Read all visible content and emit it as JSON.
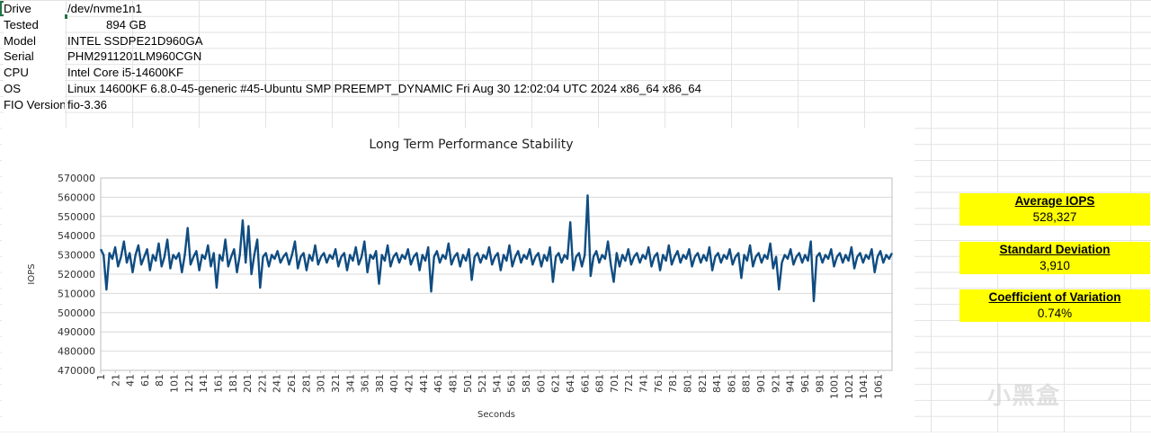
{
  "sheet": {
    "rows": [
      {
        "label": "Drive",
        "value": "/dev/nvme1n1",
        "numeric": false
      },
      {
        "label": "Tested",
        "value": "894 GB",
        "numeric": true
      },
      {
        "label": "Model",
        "value": "INTEL SSDPE21D960GA",
        "numeric": false
      },
      {
        "label": "Serial",
        "value": "PHM2911201LM960CGN",
        "numeric": false
      },
      {
        "label": "CPU",
        "value": "Intel Core i5-14600KF",
        "numeric": false
      },
      {
        "label": "OS",
        "value": "Linux 14600KF 6.8.0-45-generic #45-Ubuntu SMP PREEMPT_DYNAMIC Fri Aug 30 12:02:04 UTC 2024 x86_64 x86_64",
        "numeric": false
      },
      {
        "label": "FIO Version",
        "value": "fio-3.36",
        "numeric": false
      }
    ]
  },
  "stats": [
    {
      "title": "Average IOPS",
      "value": "528,327"
    },
    {
      "title": "Standard Deviation",
      "value": "3,910"
    },
    {
      "title": "Coefficient of Variation",
      "value": "0.74%"
    }
  ],
  "watermark": "小黑盒",
  "colors": {
    "line": "#0f4c81",
    "stat_bg": "#ffff00",
    "selection": "#217346"
  },
  "chart_data": {
    "type": "line",
    "title": "Long Term Performance Stability",
    "xlabel": "Seconds",
    "ylabel": "IOPS",
    "ylim": [
      470000,
      570000
    ],
    "yticks": [
      470000,
      480000,
      490000,
      500000,
      510000,
      520000,
      530000,
      540000,
      550000,
      560000,
      570000
    ],
    "ytick_labels": [
      "470000",
      "480000",
      "490000",
      "500000",
      "510000",
      "520000",
      "530000",
      "540000",
      "550000",
      "560000",
      "570000"
    ],
    "xtick_labels": [
      "1",
      "21",
      "41",
      "61",
      "81",
      "101",
      "121",
      "141",
      "161",
      "181",
      "201",
      "221",
      "241",
      "261",
      "281",
      "301",
      "321",
      "341",
      "361",
      "381",
      "401",
      "421",
      "441",
      "461",
      "481",
      "501",
      "521",
      "541",
      "561",
      "581",
      "601",
      "621",
      "641",
      "661",
      "681",
      "701",
      "721",
      "741",
      "761",
      "781",
      "801",
      "821",
      "841",
      "861",
      "881",
      "901",
      "921",
      "941",
      "961",
      "981",
      "1001",
      "1021",
      "1041",
      "1061"
    ],
    "x_range": [
      1,
      1080
    ],
    "grid": "horizontal",
    "series": [
      {
        "values": [
          533000,
          530000,
          512000,
          531000,
          528000,
          534000,
          524000,
          529000,
          537000,
          526000,
          531000,
          521000,
          530000,
          535000,
          525000,
          529000,
          533000,
          522000,
          530000,
          527000,
          536000,
          524000,
          529000,
          538000,
          523000,
          530000,
          528000,
          531000,
          521000,
          530000,
          544000,
          525000,
          529000,
          532000,
          522000,
          530000,
          528000,
          535000,
          524000,
          531000,
          513000,
          530000,
          527000,
          538000,
          524000,
          529000,
          533000,
          521000,
          530000,
          548000,
          526000,
          545000,
          520000,
          530000,
          538000,
          513000,
          529000,
          531000,
          524000,
          530000,
          528000,
          532000,
          526000,
          529000,
          531000,
          525000,
          530000,
          537000,
          523000,
          529000,
          531000,
          522000,
          530000,
          527000,
          535000,
          525000,
          529000,
          531000,
          526000,
          530000,
          528000,
          533000,
          524000,
          529000,
          531000,
          522000,
          530000,
          527000,
          534000,
          525000,
          529000,
          537000,
          521000,
          530000,
          528000,
          532000,
          515000,
          530000,
          527000,
          535000,
          524000,
          529000,
          531000,
          526000,
          530000,
          528000,
          533000,
          525000,
          529000,
          531000,
          522000,
          530000,
          527000,
          534000,
          511000,
          529000,
          532000,
          526000,
          530000,
          528000,
          536000,
          525000,
          529000,
          531000,
          524000,
          530000,
          527000,
          533000,
          517000,
          529000,
          531000,
          526000,
          530000,
          528000,
          534000,
          525000,
          529000,
          531000,
          522000,
          530000,
          527000,
          535000,
          524000,
          529000,
          532000,
          526000,
          530000,
          528000,
          533000,
          525000,
          529000,
          531000,
          524000,
          530000,
          527000,
          534000,
          516000,
          529000,
          531000,
          526000,
          530000,
          528000,
          547000,
          522000,
          529000,
          531000,
          524000,
          530000,
          561000,
          519000,
          529000,
          532000,
          526000,
          530000,
          528000,
          537000,
          525000,
          516000,
          531000,
          524000,
          530000,
          527000,
          533000,
          525000,
          529000,
          531000,
          526000,
          530000,
          528000,
          534000,
          524000,
          529000,
          531000,
          522000,
          530000,
          527000,
          535000,
          525000,
          529000,
          532000,
          526000,
          530000,
          528000,
          533000,
          524000,
          529000,
          531000,
          526000,
          530000,
          527000,
          534000,
          522000,
          529000,
          531000,
          526000,
          530000,
          528000,
          533000,
          525000,
          529000,
          531000,
          518000,
          530000,
          527000,
          535000,
          524000,
          529000,
          531000,
          526000,
          530000,
          528000,
          536000,
          523000,
          529000,
          512000,
          526000,
          530000,
          528000,
          533000,
          525000,
          529000,
          531000,
          526000,
          530000,
          527000,
          537000,
          506000,
          529000,
          531000,
          526000,
          530000,
          528000,
          533000,
          524000,
          529000,
          531000,
          526000,
          530000,
          527000,
          534000,
          523000,
          529000,
          531000,
          526000,
          530000,
          528000,
          533000,
          521000,
          529000,
          532000,
          526000,
          530000,
          528000,
          531000
        ]
      }
    ]
  }
}
